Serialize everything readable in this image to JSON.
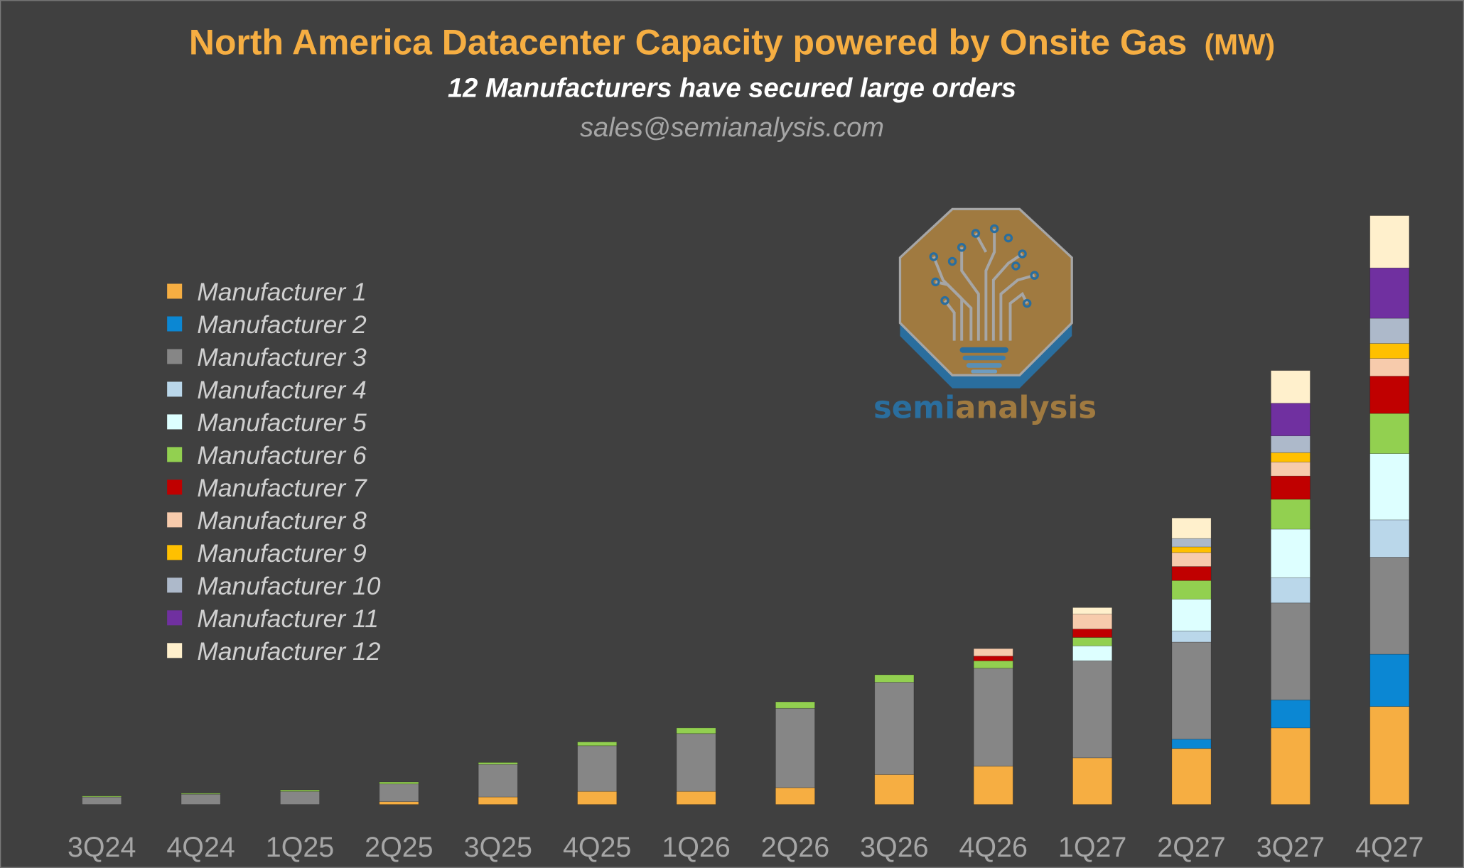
{
  "chart_data": {
    "type": "bar",
    "stacked": true,
    "title": "North America Datacenter Capacity powered by Onsite Gas",
    "title_unit": "(MW)",
    "subtitle": "12 Manufacturers have secured large orders",
    "contact": "sales@semianalysis.com",
    "xlabel": "",
    "ylabel": "",
    "y_axis_shown": false,
    "grid": false,
    "legend_position": "left",
    "categories": [
      "3Q24",
      "4Q24",
      "1Q25",
      "2Q25",
      "3Q25",
      "4Q25",
      "1Q26",
      "2Q26",
      "3Q26",
      "4Q26",
      "1Q27",
      "2Q27",
      "3Q27",
      "4Q27"
    ],
    "series": [
      {
        "name": "Manufacturer 1",
        "color": "#F6AE42",
        "values": [
          0,
          0,
          0,
          3,
          8,
          14,
          14,
          18,
          32,
          41,
          50,
          60,
          82,
          105
        ]
      },
      {
        "name": "Manufacturer 2",
        "color": "#0B87D3",
        "values": [
          0,
          0,
          0,
          0,
          0,
          0,
          0,
          0,
          0,
          0,
          0,
          10,
          30,
          56
        ]
      },
      {
        "name": "Manufacturer 3",
        "color": "#868686",
        "values": [
          8,
          11,
          14,
          19,
          35,
          49,
          62,
          85,
          99,
          105,
          104,
          104,
          104,
          104
        ]
      },
      {
        "name": "Manufacturer 4",
        "color": "#BAD7EA",
        "values": [
          0,
          0,
          0,
          0,
          0,
          0,
          0,
          0,
          0,
          0,
          0,
          12,
          27,
          40
        ]
      },
      {
        "name": "Manufacturer 5",
        "color": "#DDFFFF",
        "values": [
          0,
          0,
          0,
          0,
          0,
          0,
          0,
          0,
          0,
          0,
          16,
          34,
          52,
          71
        ]
      },
      {
        "name": "Manufacturer 6",
        "color": "#92D050",
        "values": [
          1,
          1,
          1.5,
          2,
          2,
          4,
          6,
          7,
          8,
          8,
          9,
          20,
          32,
          43
        ]
      },
      {
        "name": "Manufacturer 7",
        "color": "#C00000",
        "values": [
          0,
          0,
          0,
          0,
          0,
          0,
          0,
          0,
          0,
          5,
          9,
          15,
          25,
          40
        ]
      },
      {
        "name": "Manufacturer 8",
        "color": "#F7CBAC",
        "values": [
          0,
          0,
          0,
          0,
          0,
          0,
          0,
          0,
          0,
          8,
          16,
          15,
          15,
          19
        ]
      },
      {
        "name": "Manufacturer 9",
        "color": "#FFC000",
        "values": [
          0,
          0,
          0,
          0,
          0,
          0,
          0,
          0,
          0,
          0,
          0,
          6,
          10,
          16
        ]
      },
      {
        "name": "Manufacturer 10",
        "color": "#ADB9CA",
        "values": [
          0,
          0,
          0,
          0,
          0,
          0,
          0,
          0,
          0,
          0,
          0,
          9,
          18,
          27
        ]
      },
      {
        "name": "Manufacturer 11",
        "color": "#7030A0",
        "values": [
          0,
          0,
          0,
          0,
          0,
          0,
          0,
          0,
          0,
          0,
          0,
          0,
          35,
          54
        ]
      },
      {
        "name": "Manufacturer 12",
        "color": "#FFF0CC",
        "values": [
          0,
          0,
          0,
          0,
          0,
          0,
          0,
          0,
          0,
          0,
          7,
          22,
          35,
          56
        ]
      }
    ]
  },
  "logo": {
    "text_a": "semi",
    "text_b": "analysis",
    "color_a": "#2A6E9E",
    "color_b": "#A07A40"
  },
  "colors": {
    "background": "#404040",
    "title": "#F6AE42"
  }
}
